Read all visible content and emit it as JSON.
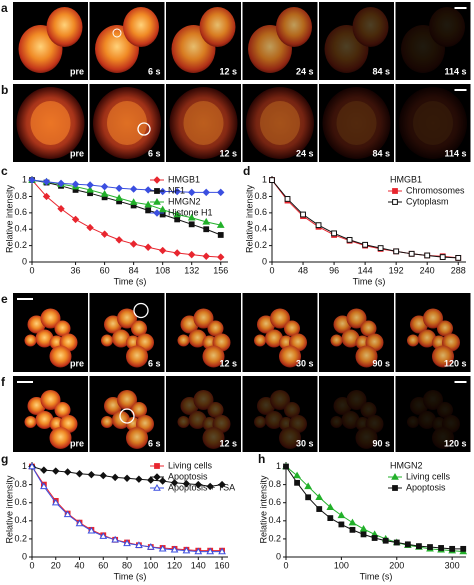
{
  "image_rows": [
    {
      "panel": "a",
      "frames": [
        "pre",
        "6 s",
        "12 s",
        "24 s",
        "84 s",
        "114 s"
      ]
    },
    {
      "panel": "b",
      "frames": [
        "pre",
        "6 s",
        "12 s",
        "24 s",
        "84 s",
        "114 s"
      ]
    },
    {
      "panel": "e",
      "frames": [
        "pre",
        "6 s",
        "12 s",
        "30 s",
        "90 s",
        "120 s"
      ]
    },
    {
      "panel": "f",
      "frames": [
        "pre",
        "6 s",
        "12 s",
        "30 s",
        "90 s",
        "120 s"
      ]
    }
  ],
  "chart_data": [
    {
      "type": "line",
      "panel": "c",
      "x_label": "Time (s)",
      "y_label": "Relative intensity",
      "x": [
        0,
        12,
        24,
        36,
        48,
        60,
        72,
        84,
        96,
        108,
        120,
        132,
        144,
        156
      ],
      "xlim": [
        0,
        162
      ],
      "xticks": [
        0,
        36,
        60,
        84,
        108,
        132,
        156
      ],
      "ylim": [
        0,
        1.05
      ],
      "yticks": [
        0,
        0.2,
        0.4,
        0.6,
        0.8,
        1
      ],
      "series": [
        {
          "name": "HMGB1",
          "color": "#e8262f",
          "marker": "diamond",
          "filled": true,
          "values": [
            1,
            0.8,
            0.65,
            0.52,
            0.42,
            0.34,
            0.27,
            0.22,
            0.18,
            0.14,
            0.11,
            0.09,
            0.07,
            0.06
          ]
        },
        {
          "name": "NF1",
          "color": "#111111",
          "marker": "square",
          "filled": true,
          "values": [
            1,
            0.97,
            0.93,
            0.88,
            0.84,
            0.79,
            0.74,
            0.69,
            0.63,
            0.58,
            0.52,
            0.46,
            0.4,
            0.33
          ]
        },
        {
          "name": "HMGN2",
          "color": "#22b02a",
          "marker": "triangle",
          "filled": true,
          "values": [
            1,
            0.98,
            0.95,
            0.92,
            0.88,
            0.83,
            0.78,
            0.73,
            0.7,
            0.64,
            0.58,
            0.54,
            0.49,
            0.45
          ]
        },
        {
          "name": "Histone H1",
          "color": "#3b4fe0",
          "marker": "diamond",
          "filled": true,
          "values": [
            1,
            0.98,
            0.96,
            0.95,
            0.94,
            0.92,
            0.9,
            0.89,
            0.88,
            0.86,
            0.86,
            0.85,
            0.85,
            0.85
          ]
        }
      ]
    },
    {
      "type": "line",
      "panel": "d",
      "x_label": "Time (s)",
      "y_label": "Relative intensity",
      "legend_title": "HMGB1",
      "x": [
        0,
        24,
        48,
        72,
        96,
        120,
        144,
        168,
        192,
        216,
        240,
        264,
        288
      ],
      "xlim": [
        0,
        300
      ],
      "xticks": [
        0,
        48,
        96,
        144,
        192,
        240,
        288
      ],
      "ylim": [
        0,
        1.05
      ],
      "yticks": [
        0,
        0.2,
        0.4,
        0.6,
        0.8,
        1
      ],
      "series": [
        {
          "name": "Chromosomes",
          "color": "#e8262f",
          "marker": "square",
          "filled": true,
          "values": [
            1,
            0.75,
            0.56,
            0.43,
            0.33,
            0.26,
            0.2,
            0.16,
            0.13,
            0.1,
            0.08,
            0.07,
            0.05
          ]
        },
        {
          "name": "Cytoplasm",
          "color": "#111111",
          "marker": "square",
          "filled": false,
          "values": [
            1,
            0.77,
            0.58,
            0.45,
            0.35,
            0.27,
            0.21,
            0.17,
            0.13,
            0.1,
            0.08,
            0.06,
            0.05
          ]
        }
      ]
    },
    {
      "type": "line",
      "panel": "g",
      "x_label": "Time (s)",
      "y_label": "Relative intensity",
      "x": [
        0,
        10,
        20,
        30,
        40,
        50,
        60,
        70,
        80,
        90,
        100,
        110,
        120,
        130,
        140,
        150,
        160
      ],
      "xlim": [
        0,
        165
      ],
      "xticks": [
        0,
        20,
        40,
        60,
        80,
        100,
        120,
        140,
        160
      ],
      "ylim": [
        0,
        1.05
      ],
      "yticks": [
        0,
        0.2,
        0.4,
        0.6,
        0.8,
        1
      ],
      "series": [
        {
          "name": "Living cells",
          "color": "#e8262f",
          "marker": "square",
          "filled": true,
          "values": [
            1,
            0.8,
            0.62,
            0.48,
            0.38,
            0.3,
            0.24,
            0.19,
            0.16,
            0.13,
            0.11,
            0.1,
            0.09,
            0.08,
            0.07,
            0.07,
            0.07
          ]
        },
        {
          "name": "Apoptosis",
          "color": "#111111",
          "marker": "diamond",
          "filled": true,
          "values": [
            1,
            0.96,
            0.95,
            0.94,
            0.92,
            0.91,
            0.9,
            0.88,
            0.87,
            0.86,
            0.85,
            0.84,
            0.82,
            0.81,
            0.8,
            0.78,
            0.8
          ]
        },
        {
          "name": "Apoptosis + TSA",
          "color": "#3b4fe0",
          "marker": "triangle",
          "filled": false,
          "values": [
            1,
            0.78,
            0.6,
            0.47,
            0.37,
            0.29,
            0.23,
            0.19,
            0.15,
            0.13,
            0.11,
            0.09,
            0.08,
            0.07,
            0.06,
            0.06,
            0.06
          ]
        }
      ]
    },
    {
      "type": "line",
      "panel": "h",
      "x_label": "Time (s)",
      "y_label": "Relative intensity",
      "legend_title": "HMGN2",
      "x": [
        0,
        20,
        40,
        60,
        80,
        100,
        120,
        140,
        160,
        180,
        200,
        220,
        240,
        260,
        280,
        300,
        320
      ],
      "xlim": [
        0,
        325
      ],
      "xticks": [
        0,
        100,
        200,
        300
      ],
      "ylim": [
        0,
        1.05
      ],
      "yticks": [
        0,
        0.2,
        0.4,
        0.6,
        0.8,
        1
      ],
      "series": [
        {
          "name": "Living cells",
          "color": "#22b02a",
          "marker": "triangle",
          "filled": true,
          "values": [
            1,
            0.9,
            0.78,
            0.66,
            0.55,
            0.46,
            0.38,
            0.31,
            0.25,
            0.2,
            0.16,
            0.13,
            0.11,
            0.09,
            0.08,
            0.07,
            0.06
          ]
        },
        {
          "name": "Apoptosis",
          "color": "#111111",
          "marker": "square",
          "filled": true,
          "values": [
            1,
            0.82,
            0.66,
            0.53,
            0.43,
            0.36,
            0.3,
            0.25,
            0.21,
            0.18,
            0.16,
            0.14,
            0.12,
            0.11,
            0.1,
            0.09,
            0.09
          ]
        }
      ]
    }
  ]
}
